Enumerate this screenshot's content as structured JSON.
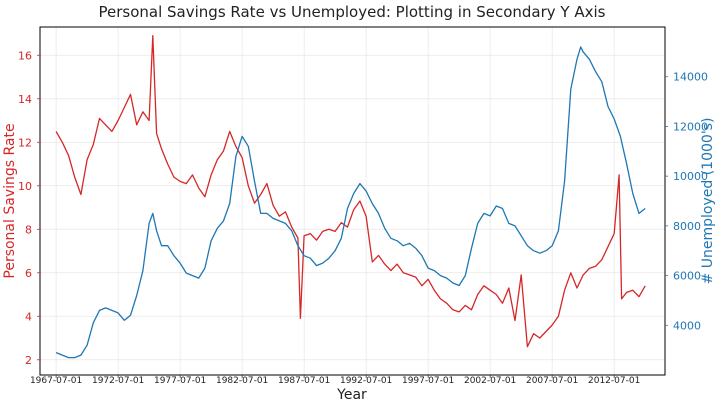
{
  "chart_data": {
    "type": "line",
    "title": "Personal Savings Rate vs Unemployed: Plotting in Secondary Y Axis",
    "xlabel": "Year",
    "ylabel_left": "Personal Savings Rate",
    "ylabel_right": "# Unemployed (1000's)",
    "x_tick_labels": [
      "1967-07-01",
      "1972-07-01",
      "1977-07-01",
      "1982-07-01",
      "1987-07-01",
      "1992-07-01",
      "1997-07-01",
      "2002-07-01",
      "2007-07-01",
      "2012-07-01"
    ],
    "y_left_ticks": [
      "2",
      "4",
      "6",
      "8",
      "10",
      "12",
      "14",
      "16"
    ],
    "y_right_ticks": [
      "4000",
      "6000",
      "8000",
      "10000",
      "12000",
      "14000"
    ],
    "ylim_left": [
      1.3,
      17.3
    ],
    "ylim_right": [
      2000,
      16000
    ],
    "xlim": [
      1966.2,
      2016.6
    ],
    "grid": true,
    "colors": {
      "left_axis": "#d62728",
      "right_axis": "#1f77b4",
      "frame": "#000000"
    },
    "series": [
      {
        "axis": "left",
        "color": "#d62728",
        "x": [
          1967.5,
          1968.0,
          1968.5,
          1969.0,
          1969.5,
          1970.0,
          1970.5,
          1971.0,
          1971.5,
          1972.0,
          1972.5,
          1973.0,
          1973.5,
          1974.0,
          1974.5,
          1975.0,
          1975.3,
          1975.6,
          1976.0,
          1976.5,
          1977.0,
          1977.5,
          1978.0,
          1978.5,
          1979.0,
          1979.5,
          1980.0,
          1980.5,
          1981.0,
          1981.5,
          1982.0,
          1982.5,
          1983.0,
          1983.5,
          1984.0,
          1984.5,
          1985.0,
          1985.5,
          1986.0,
          1986.5,
          1987.0,
          1987.2,
          1987.5,
          1988.0,
          1988.5,
          1989.0,
          1989.5,
          1990.0,
          1990.5,
          1991.0,
          1991.5,
          1992.0,
          1992.5,
          1993.0,
          1993.5,
          1994.0,
          1994.5,
          1995.0,
          1995.5,
          1996.0,
          1996.5,
          1997.0,
          1997.5,
          1998.0,
          1998.5,
          1999.0,
          1999.5,
          2000.0,
          2000.5,
          2001.0,
          2001.5,
          2002.0,
          2002.5,
          2003.0,
          2003.5,
          2004.0,
          2004.5,
          2005.0,
          2005.5,
          2006.0,
          2006.5,
          2007.0,
          2007.5,
          2008.0,
          2008.5,
          2009.0,
          2009.5,
          2010.0,
          2010.5,
          2011.0,
          2011.5,
          2012.0,
          2012.5,
          2012.9,
          2013.1,
          2013.5,
          2014.0,
          2014.5,
          2015.0
        ],
        "y": [
          12.5,
          12.0,
          11.4,
          10.4,
          9.6,
          11.2,
          11.9,
          13.1,
          12.8,
          12.5,
          13.0,
          13.6,
          14.2,
          12.8,
          13.4,
          13.0,
          16.9,
          12.4,
          11.7,
          11.0,
          10.4,
          10.2,
          10.1,
          10.5,
          9.9,
          9.5,
          10.5,
          11.2,
          11.6,
          12.5,
          11.8,
          11.3,
          10.0,
          9.2,
          9.6,
          10.1,
          9.1,
          8.6,
          8.8,
          8.1,
          7.6,
          3.9,
          7.7,
          7.8,
          7.5,
          7.9,
          8.0,
          7.9,
          8.3,
          8.1,
          8.9,
          9.3,
          8.6,
          6.5,
          6.8,
          6.4,
          6.1,
          6.4,
          6.0,
          5.9,
          5.8,
          5.4,
          5.7,
          5.2,
          4.8,
          4.6,
          4.3,
          4.2,
          4.5,
          4.3,
          5.0,
          5.4,
          5.2,
          5.0,
          4.6,
          5.3,
          3.8,
          5.9,
          2.6,
          3.2,
          3.0,
          3.3,
          3.6,
          4.0,
          5.2,
          6.0,
          5.3,
          5.9,
          6.2,
          6.3,
          6.6,
          7.2,
          7.8,
          10.5,
          4.8,
          5.1,
          5.2,
          4.9,
          5.4
        ]
      },
      {
        "axis": "right",
        "color": "#1f77b4",
        "x": [
          1967.5,
          1968.0,
          1968.5,
          1969.0,
          1969.5,
          1970.0,
          1970.5,
          1971.0,
          1971.5,
          1972.0,
          1972.5,
          1973.0,
          1973.5,
          1974.0,
          1974.5,
          1975.0,
          1975.3,
          1975.6,
          1976.0,
          1976.5,
          1977.0,
          1977.5,
          1978.0,
          1978.5,
          1979.0,
          1979.5,
          1980.0,
          1980.5,
          1981.0,
          1981.5,
          1982.0,
          1982.5,
          1983.0,
          1983.5,
          1984.0,
          1984.5,
          1985.0,
          1985.5,
          1986.0,
          1986.5,
          1987.0,
          1987.5,
          1988.0,
          1988.5,
          1989.0,
          1989.5,
          1990.0,
          1990.5,
          1991.0,
          1991.5,
          1992.0,
          1992.5,
          1993.0,
          1993.5,
          1994.0,
          1994.5,
          1995.0,
          1995.5,
          1996.0,
          1996.5,
          1997.0,
          1997.5,
          1998.0,
          1998.5,
          1999.0,
          1999.5,
          2000.0,
          2000.5,
          2001.0,
          2001.5,
          2002.0,
          2002.5,
          2003.0,
          2003.5,
          2004.0,
          2004.5,
          2005.0,
          2005.5,
          2006.0,
          2006.5,
          2007.0,
          2007.5,
          2008.0,
          2008.5,
          2009.0,
          2009.5,
          2009.8,
          2010.0,
          2010.5,
          2011.0,
          2011.5,
          2012.0,
          2012.5,
          2013.0,
          2013.5,
          2014.0,
          2014.5,
          2015.0
        ],
        "y": [
          2900,
          2800,
          2700,
          2700,
          2800,
          3200,
          4100,
          4600,
          4700,
          4600,
          4500,
          4200,
          4400,
          5200,
          6200,
          8100,
          8500,
          7800,
          7200,
          7200,
          6800,
          6500,
          6100,
          6000,
          5900,
          6300,
          7400,
          7900,
          8200,
          8900,
          10800,
          11600,
          11200,
          9800,
          8500,
          8500,
          8300,
          8200,
          8100,
          7800,
          7200,
          6800,
          6700,
          6400,
          6500,
          6700,
          7000,
          7500,
          8700,
          9300,
          9700,
          9400,
          8900,
          8500,
          7900,
          7500,
          7400,
          7200,
          7300,
          7100,
          6800,
          6300,
          6200,
          6000,
          5900,
          5700,
          5600,
          6000,
          7100,
          8100,
          8500,
          8400,
          8800,
          8700,
          8100,
          8000,
          7600,
          7200,
          7000,
          6900,
          7000,
          7200,
          7800,
          9800,
          13500,
          14700,
          15200,
          15000,
          14700,
          14200,
          13800,
          12800,
          12300,
          11600,
          10500,
          9300,
          8500,
          8700
        ]
      }
    ]
  }
}
